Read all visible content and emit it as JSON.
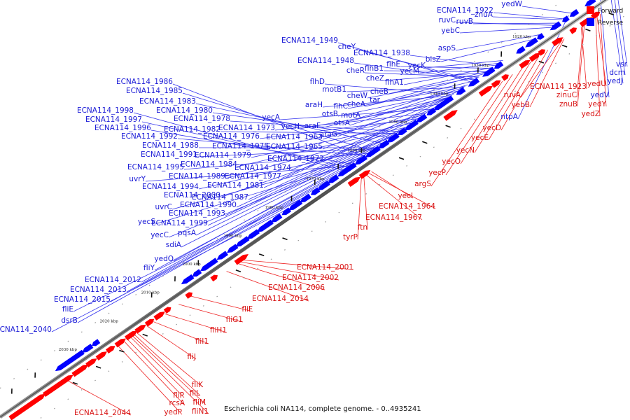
{
  "caption": "Escherichia coli NA114, complete genome. - 0..4935241",
  "legend": {
    "forward_label": "Forward",
    "reverse_label": "Reverse",
    "forward_color": "#ff0000",
    "reverse_color": "#0000ff"
  },
  "ticks": [
    "1920 kbp",
    "1930 kbp",
    "1940 kbp",
    "1950 kbp",
    "1960 kbp",
    "1970 kbp",
    "1980 kbp",
    "1990 kbp",
    "2000 kbp",
    "2010 kbp",
    "2020 kbp",
    "2030 kbp"
  ],
  "reverse_genes": [
    "ECNA114_1922",
    "yedW",
    "znuA",
    "ruvC",
    "ruvB",
    "yebC",
    "aspS",
    "bisZ",
    "ECNA114_1949",
    "cheY",
    "ECNA114_1938",
    "ECNA114_1948",
    "cheR",
    "flhB1",
    "flhE",
    "yecK",
    "yecM",
    "cheZ",
    "flhA1",
    "cheB",
    "cheW",
    "tar",
    "flhD",
    "motB1",
    "flhC",
    "cheA",
    "araH",
    "otsB",
    "motA",
    "yecA",
    "yecH",
    "otsA",
    "araF",
    "araG",
    "ECNA114_1986",
    "ECNA114_1985",
    "ECNA114_1983",
    "ECNA114_1980",
    "ECNA114_1998",
    "ECNA114_1978",
    "ECNA114_1997",
    "ECNA114_1982",
    "ECNA114_1973",
    "ECNA114_1996",
    "ECNA114_1976",
    "ECNA114_1963",
    "ECNA114_1992",
    "ECNA114_1975",
    "ECNA114_1965",
    "ECNA114_1988",
    "ECNA114_1991",
    "ECNA114_1979",
    "ECNA114_1972",
    "ECNA114_1984",
    "ECNA114_1974",
    "ECNA114_1995",
    "ECNA114_1989",
    "ECNA114_1977",
    "uvrY",
    "ECNA114_1981",
    "ECNA114_1994",
    "ECNA114_2000",
    "ECNA114_1987",
    "ECNA114_1990",
    "uvrC",
    "ECNA114_1993",
    "yecS",
    "ECNA114_1999",
    "pqsA",
    "yecC",
    "sdiA",
    "yedO",
    "fliY",
    "ECNA114_2012",
    "ECNA114_2013",
    "ECNA114_2015",
    "fliE",
    "dsrB",
    "ECNA114_2040",
    "vsr",
    "dcm",
    "yedJ",
    "yedV",
    "ntpA"
  ],
  "forward_genes": [
    "ECNA114_1923",
    "yedU",
    "ruvA",
    "zinuC",
    "yedY",
    "yebB",
    "znuB",
    "yedZ",
    "yecD",
    "yecE",
    "yecN",
    "yecO",
    "yecP",
    "argS",
    "yecI",
    "ECNA114_1964",
    "ECNA114_1967",
    "ftn",
    "tyrP",
    "ECNA114_2001",
    "ECNA114_2002",
    "ECNA114_2006",
    "ECNA114_2014",
    "fliF",
    "fliG1",
    "fliH1",
    "fliI1",
    "fliJ",
    "fliK",
    "fliL",
    "fliP",
    "fliM",
    "rcsA",
    "fliN1",
    "yedP",
    "ECNA114_2044"
  ]
}
